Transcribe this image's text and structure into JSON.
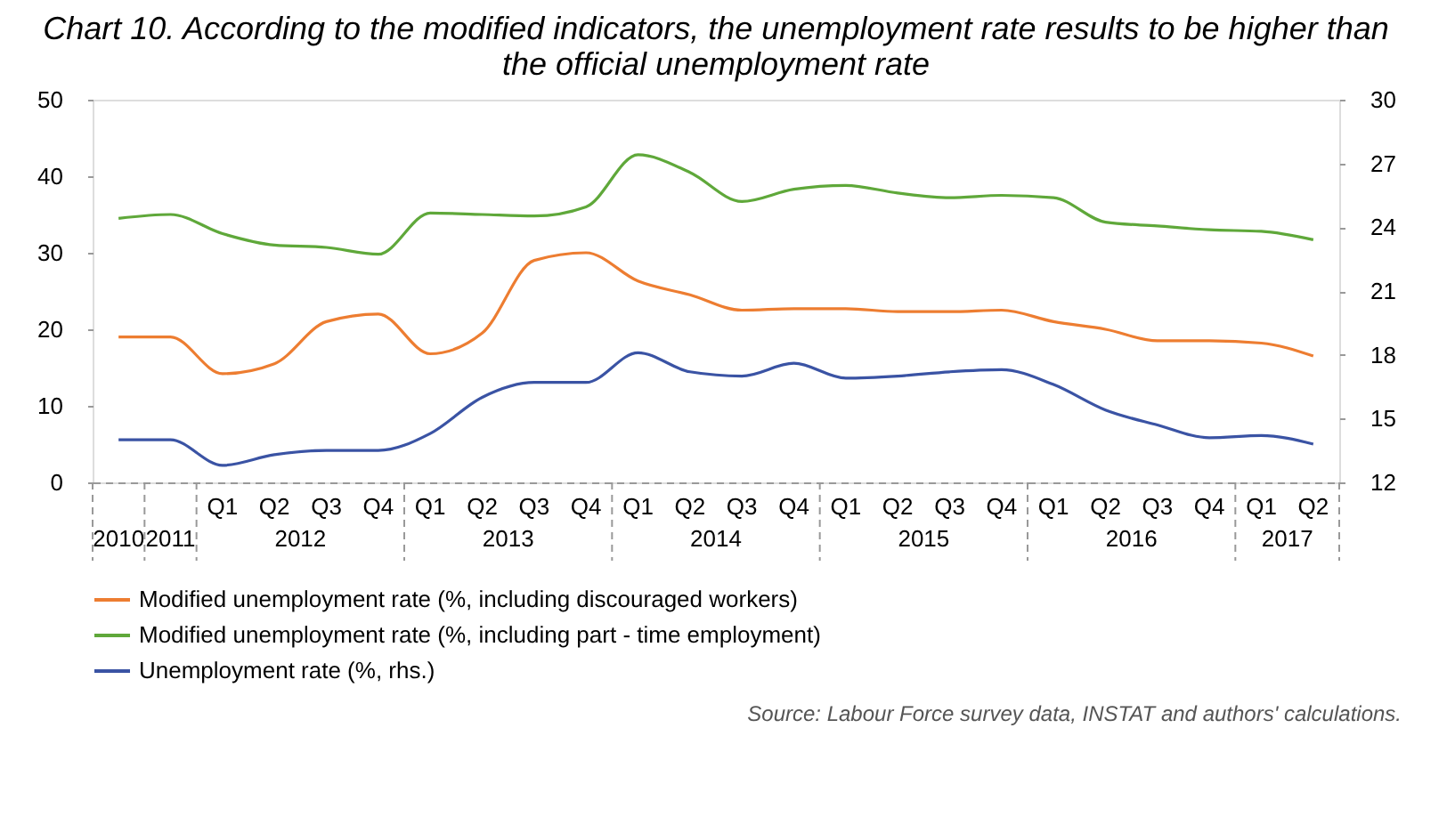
{
  "chart_data": {
    "type": "line",
    "title": "Chart 10. According to the modified indicators, the unemployment rate results to be higher than the official unemployment rate",
    "categories": [
      null,
      null,
      "Q1",
      "Q2",
      "Q3",
      "Q4",
      "Q1",
      "Q2",
      "Q3",
      "Q4",
      "Q1",
      "Q2",
      "Q3",
      "Q4",
      "Q1",
      "Q2",
      "Q3",
      "Q4",
      "Q1",
      "Q2",
      "Q3",
      "Q4",
      "Q1",
      "Q2"
    ],
    "series": [
      {
        "name": "Modified unemployment rate (%, including discouraged workers)",
        "color": "#ed7d31",
        "values": [
          19,
          19,
          14.2,
          15.5,
          21,
          22,
          16.8,
          19.5,
          29,
          30,
          26.3,
          24.5,
          22.5,
          22.7,
          22.7,
          22.3,
          22.3,
          22.5,
          21,
          20,
          18.5,
          18.5,
          18.2,
          16.5
        ]
      },
      {
        "name": "Modified unemployment rate (%, including part - time employment)",
        "color": "#5fa83a",
        "values": [
          34.5,
          35,
          32.5,
          31,
          30.7,
          29.8,
          35.2,
          35,
          34.8,
          36,
          42.8,
          40.5,
          36.7,
          38.3,
          38.8,
          37.8,
          37.2,
          37.5,
          37.2,
          34,
          33.5,
          33,
          32.8,
          31.7
        ]
      },
      {
        "name": "Unemployment rate (%, rhs.)",
        "color": "#3a53a4",
        "axis": "y2",
        "values": [
          14.0,
          14.0,
          12.8,
          13.3,
          13.5,
          13.5,
          14.3,
          16.0,
          16.7,
          16.7,
          18.1,
          17.2,
          17.0,
          17.6,
          16.9,
          17.0,
          17.2,
          17.3,
          16.6,
          15.4,
          14.7,
          14.1,
          14.2,
          13.8
        ]
      }
    ],
    "ylim": [
      0,
      50
    ],
    "yticks": [
      0,
      10,
      20,
      30,
      40,
      50
    ],
    "y2lim": [
      12,
      30
    ],
    "y2ticks": [
      12,
      15,
      18,
      21,
      24,
      27,
      30
    ],
    "legend": "bottom",
    "grid": false,
    "marker": "none",
    "line_style": "solid",
    "annotations": [
      "2010",
      "2011",
      "2012",
      "2013",
      "2014",
      "2015",
      "2016",
      "2017",
      "Source: Labour Force survey data, INSTAT and authors' calculations."
    ]
  }
}
